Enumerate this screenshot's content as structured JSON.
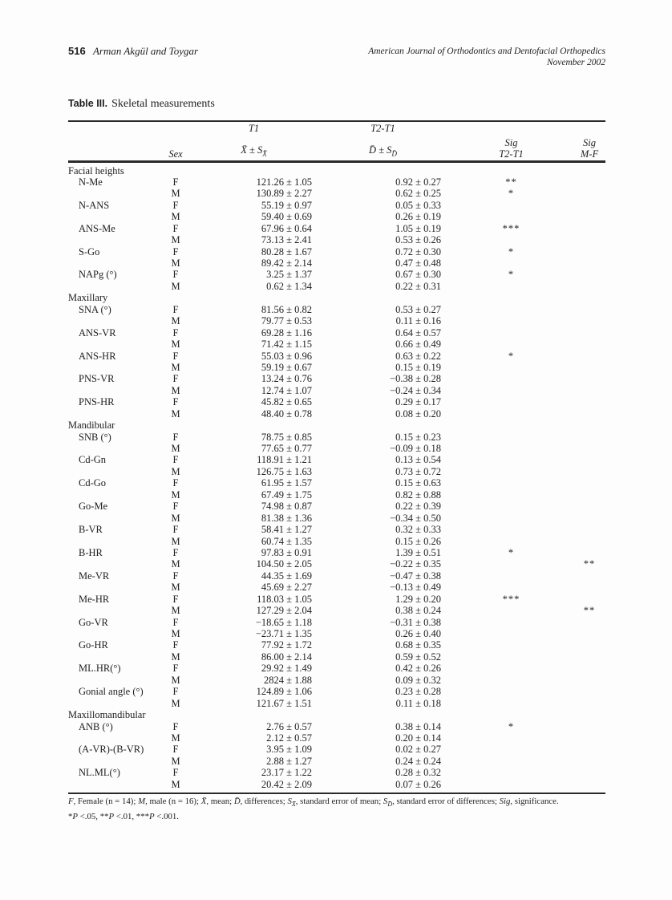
{
  "page": {
    "number": "516",
    "running_authors": "Arman Akgül and Toygar",
    "journal": "American Journal of Orthodontics and Dentofacial Orthopedics",
    "issue": "November 2002"
  },
  "table": {
    "label": "Table III.",
    "title": "Skeletal measurements",
    "header": {
      "sex": "Sex",
      "t1_group": "T1",
      "t1_stat_main": "X̄ ± S",
      "t1_stat_sub": "X̄",
      "t2t1_group": "T2-T1",
      "d_stat_main": "D̄ ± S",
      "d_stat_sub": "D̄",
      "sig1_line1": "Sig",
      "sig1_line2": "T2-T1",
      "sig2_line1": "Sig",
      "sig2_line2": "M-F"
    },
    "sections": [
      {
        "name": "Facial heights",
        "measurements": [
          {
            "label": "N-Me",
            "rows": [
              [
                "F",
                "121.26 ± 1.05",
                "0.92 ± 0.27",
                "**",
                ""
              ],
              [
                "M",
                "130.89 ± 2.27",
                "0.62 ± 0.25",
                "*",
                ""
              ]
            ]
          },
          {
            "label": "N-ANS",
            "rows": [
              [
                "F",
                "55.19 ± 0.97",
                "0.05 ± 0.33",
                "",
                ""
              ],
              [
                "M",
                "59.40 ± 0.69",
                "0.26 ± 0.19",
                "",
                ""
              ]
            ]
          },
          {
            "label": "ANS-Me",
            "rows": [
              [
                "F",
                "67.96 ± 0.64",
                "1.05 ± 0.19",
                "***",
                ""
              ],
              [
                "M",
                "73.13 ± 2.41",
                "0.53 ± 0.26",
                "",
                ""
              ]
            ]
          },
          {
            "label": "S-Go",
            "rows": [
              [
                "F",
                "80.28 ± 1.67",
                "0.72 ± 0.30",
                "*",
                ""
              ],
              [
                "M",
                "89.42 ± 2.14",
                "0.47 ± 0.48",
                "",
                ""
              ]
            ]
          },
          {
            "label": "NAPg (°)",
            "rows": [
              [
                "F",
                "3.25 ± 1.37",
                "0.67 ± 0.30",
                "*",
                ""
              ],
              [
                "M",
                "0.62 ± 1.34",
                "0.22 ± 0.31",
                "",
                ""
              ]
            ]
          }
        ]
      },
      {
        "name": "Maxillary",
        "measurements": [
          {
            "label": "SNA (°)",
            "rows": [
              [
                "F",
                "81.56 ± 0.82",
                "0.53 ± 0.27",
                "",
                ""
              ],
              [
                "M",
                "79.77 ± 0.53",
                "0.11 ± 0.16",
                "",
                ""
              ]
            ]
          },
          {
            "label": "ANS-VR",
            "rows": [
              [
                "F",
                "69.28 ± 1.16",
                "0.64 ± 0.57",
                "",
                ""
              ],
              [
                "M",
                "71.42 ± 1.15",
                "0.66 ± 0.49",
                "",
                ""
              ]
            ]
          },
          {
            "label": "ANS-HR",
            "rows": [
              [
                "F",
                "55.03 ± 0.96",
                "0.63 ± 0.22",
                "*",
                ""
              ],
              [
                "M",
                "59.19 ± 0.67",
                "0.15 ± 0.19",
                "",
                ""
              ]
            ]
          },
          {
            "label": "PNS-VR",
            "rows": [
              [
                "F",
                "13.24 ± 0.76",
                "−0.38 ± 0.28",
                "",
                ""
              ],
              [
                "M",
                "12.74 ± 1.07",
                "−0.24 ± 0.34",
                "",
                ""
              ]
            ]
          },
          {
            "label": "PNS-HR",
            "rows": [
              [
                "F",
                "45.82 ± 0.65",
                "0.29 ± 0.17",
                "",
                ""
              ],
              [
                "M",
                "48.40 ± 0.78",
                "0.08 ± 0.20",
                "",
                ""
              ]
            ]
          }
        ]
      },
      {
        "name": "Mandibular",
        "measurements": [
          {
            "label": "SNB (°)",
            "rows": [
              [
                "F",
                "78.75 ± 0.85",
                "0.15 ± 0.23",
                "",
                ""
              ],
              [
                "M",
                "77.65 ± 0.77",
                "−0.09 ± 0.18",
                "",
                ""
              ]
            ]
          },
          {
            "label": "Cd-Gn",
            "rows": [
              [
                "F",
                "118.91 ± 1.21",
                "0.13 ± 0.54",
                "",
                ""
              ],
              [
                "M",
                "126.75 ± 1.63",
                "0.73 ± 0.72",
                "",
                ""
              ]
            ]
          },
          {
            "label": "Cd-Go",
            "rows": [
              [
                "F",
                "61.95 ± 1.57",
                "0.15 ± 0.63",
                "",
                ""
              ],
              [
                "M",
                "67.49 ± 1.75",
                "0.82 ± 0.88",
                "",
                ""
              ]
            ]
          },
          {
            "label": "Go-Me",
            "rows": [
              [
                "F",
                "74.98 ± 0.87",
                "0.22 ± 0.39",
                "",
                ""
              ],
              [
                "M",
                "81.38 ± 1.36",
                "−0.34 ± 0.50",
                "",
                ""
              ]
            ]
          },
          {
            "label": "B-VR",
            "rows": [
              [
                "F",
                "58.41 ± 1.27",
                "0.32 ± 0.33",
                "",
                ""
              ],
              [
                "M",
                "60.74 ± 1.35",
                "0.15 ± 0.26",
                "",
                ""
              ]
            ]
          },
          {
            "label": "B-HR",
            "rows": [
              [
                "F",
                "97.83 ± 0.91",
                "1.39 ± 0.51",
                "*",
                ""
              ],
              [
                "M",
                "104.50 ± 2.05",
                "−0.22 ± 0.35",
                "",
                "**"
              ]
            ]
          },
          {
            "label": "Me-VR",
            "rows": [
              [
                "F",
                "44.35 ± 1.69",
                "−0.47 ± 0.38",
                "",
                ""
              ],
              [
                "M",
                "45.69 ± 2.27",
                "−0.13 ± 0.49",
                "",
                ""
              ]
            ]
          },
          {
            "label": "Me-HR",
            "rows": [
              [
                "F",
                "118.03 ± 1.05",
                "1.29 ± 0.20",
                "***",
                ""
              ],
              [
                "M",
                "127.29 ± 2.04",
                "0.38 ± 0.24",
                "",
                "**"
              ]
            ]
          },
          {
            "label": "Go-VR",
            "rows": [
              [
                "F",
                "−18.65 ± 1.18",
                "−0.31 ± 0.38",
                "",
                ""
              ],
              [
                "M",
                "−23.71 ± 1.35",
                "0.26 ± 0.40",
                "",
                ""
              ]
            ]
          },
          {
            "label": "Go-HR",
            "rows": [
              [
                "F",
                "77.92 ± 1.72",
                "0.68 ± 0.35",
                "",
                ""
              ],
              [
                "M",
                "86.00 ± 2.14",
                "0.59 ± 0.52",
                "",
                ""
              ]
            ]
          },
          {
            "label": "ML.HR(°)",
            "rows": [
              [
                "F",
                "29.92 ± 1.49",
                "0.42 ± 0.26",
                "",
                ""
              ],
              [
                "M",
                "2824 ± 1.88",
                "0.09 ± 0.32",
                "",
                ""
              ]
            ]
          },
          {
            "label": "Gonial angle (°)",
            "rows": [
              [
                "F",
                "124.89 ± 1.06",
                "0.23 ± 0.28",
                "",
                ""
              ],
              [
                "M",
                "121.67 ± 1.51",
                "0.11 ± 0.18",
                "",
                ""
              ]
            ]
          }
        ]
      },
      {
        "name": "Maxillomandibular",
        "measurements": [
          {
            "label": "ANB (°)",
            "rows": [
              [
                "F",
                "2.76 ± 0.57",
                "0.38 ± 0.14",
                "*",
                ""
              ],
              [
                "M",
                "2.12 ± 0.57",
                "0.20 ± 0.14",
                "",
                ""
              ]
            ]
          },
          {
            "label": "(A-VR)-(B-VR)",
            "rows": [
              [
                "F",
                "3.95 ± 1.09",
                "0.02 ± 0.27",
                "",
                ""
              ],
              [
                "M",
                "2.88 ± 1.27",
                "0.24 ± 0.24",
                "",
                ""
              ]
            ]
          },
          {
            "label": "NL.ML(°)",
            "rows": [
              [
                "F",
                "23.17 ± 1.22",
                "0.28 ± 0.32",
                "",
                ""
              ],
              [
                "M",
                "20.42 ± 2.09",
                "0.07 ± 0.26",
                "",
                ""
              ]
            ]
          }
        ]
      }
    ]
  },
  "footnote": {
    "line1": [
      {
        "t": "F",
        "s": "i"
      },
      {
        "t": ", Female (n = 14); ",
        "s": ""
      },
      {
        "t": "M",
        "s": "i"
      },
      {
        "t": ", male (n = 16); ",
        "s": ""
      },
      {
        "t": "X̄",
        "s": "i"
      },
      {
        "t": ", mean; ",
        "s": ""
      },
      {
        "t": "D̄",
        "s": "i"
      },
      {
        "t": ", differences; ",
        "s": ""
      },
      {
        "t": "S",
        "s": "i"
      },
      {
        "t": "X̄",
        "s": "isub"
      },
      {
        "t": ", standard error of mean; ",
        "s": ""
      },
      {
        "t": "S",
        "s": "i"
      },
      {
        "t": "D̄",
        "s": "isub"
      },
      {
        "t": ", standard error of differences; ",
        "s": ""
      },
      {
        "t": "Sig",
        "s": "i"
      },
      {
        "t": ", significance.",
        "s": ""
      }
    ],
    "line2": [
      {
        "t": "*",
        "s": ""
      },
      {
        "t": "P",
        "s": "i"
      },
      {
        "t": " <.05, ",
        "s": ""
      },
      {
        "t": "**",
        "s": ""
      },
      {
        "t": "P",
        "s": "i"
      },
      {
        "t": " <.01, ",
        "s": ""
      },
      {
        "t": "***",
        "s": ""
      },
      {
        "t": "P",
        "s": "i"
      },
      {
        "t": " <.001.",
        "s": ""
      }
    ]
  }
}
